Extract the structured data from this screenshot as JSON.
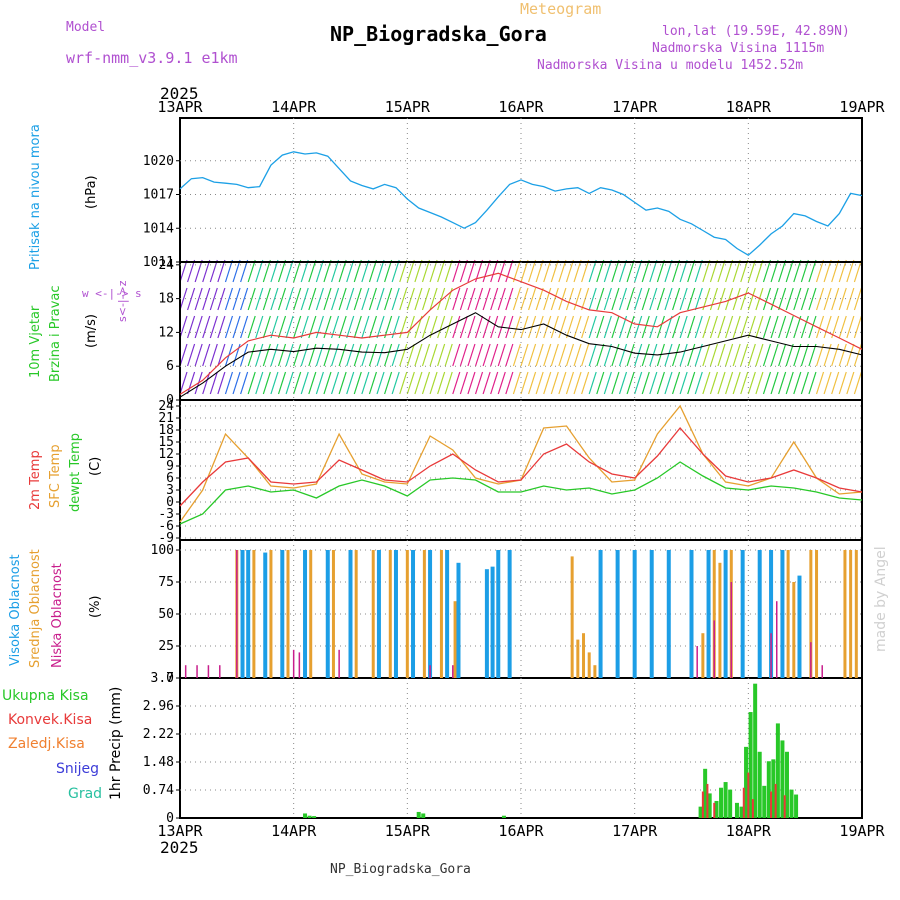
{
  "header": {
    "model_label": "Model",
    "model_value": "wrf-nmm_v3.9.1 e1km",
    "meteogram_label": "Meteogram",
    "title": "NP_Biogradska_Gora",
    "lonlat": "lon,lat (19.59E, 42.89N)",
    "elevation": "Nadmorska Visina 1115m",
    "model_elevation": "Nadmorska Visina u modelu 1452.52m",
    "footer_name": "NP_Biogradska_Gora",
    "watermark": "made by Angel",
    "year": "2025"
  },
  "colors": {
    "pressure": "#1ca0e6",
    "t2m": "#e83a3a",
    "sfc": "#e6a030",
    "dew": "#28c828",
    "cloud_high": "#1c9ee6",
    "cloud_mid": "#e6a030",
    "cloud_low": "#c81e8c",
    "rain_total": "#28c828",
    "rain_conv": "#e83a3a",
    "model": "#b050d0",
    "meteogram": "#f0c070"
  },
  "chart_data": [
    {
      "type": "line",
      "name": "pressure",
      "x_labels": [
        "13APR",
        "14APR",
        "15APR",
        "16APR",
        "17APR",
        "18APR",
        "19APR"
      ],
      "ylabel_colored": "Pritisak na nivou mora",
      "ylabel_unit": "(hPa)",
      "yticks": [
        1011,
        1014,
        1017,
        1020
      ],
      "ylim": [
        1011,
        1023.8
      ],
      "x": [
        0,
        0.1,
        0.2,
        0.3,
        0.4,
        0.5,
        0.6,
        0.7,
        0.8,
        0.9,
        1.0,
        1.1,
        1.2,
        1.3,
        1.4,
        1.5,
        1.6,
        1.7,
        1.8,
        1.9,
        2.0,
        2.1,
        2.2,
        2.3,
        2.4,
        2.5,
        2.6,
        2.7,
        2.8,
        2.9,
        3.0,
        3.1,
        3.2,
        3.3,
        3.4,
        3.5,
        3.6,
        3.7,
        3.8,
        3.9,
        4.0,
        4.1,
        4.2,
        4.3,
        4.4,
        4.5,
        4.6,
        4.7,
        4.8,
        4.9,
        5.0,
        5.1,
        5.2,
        5.3,
        5.4,
        5.5,
        5.6,
        5.7,
        5.8,
        5.9,
        6.0
      ],
      "values": [
        1017.5,
        1018.4,
        1018.5,
        1018.1,
        1018.0,
        1017.9,
        1017.6,
        1017.7,
        1019.6,
        1020.5,
        1020.8,
        1020.6,
        1020.7,
        1020.4,
        1019.3,
        1018.2,
        1017.8,
        1017.5,
        1017.9,
        1017.6,
        1016.6,
        1015.8,
        1015.4,
        1015.0,
        1014.5,
        1014.0,
        1014.5,
        1015.6,
        1016.8,
        1017.9,
        1018.3,
        1017.9,
        1017.7,
        1017.3,
        1017.5,
        1017.6,
        1017.1,
        1017.6,
        1017.4,
        1017.0,
        1016.3,
        1015.6,
        1015.8,
        1015.5,
        1014.8,
        1014.4,
        1013.8,
        1013.2,
        1013.0,
        1012.2,
        1011.6,
        1012.5,
        1013.5,
        1014.2,
        1015.3,
        1015.1,
        1014.6,
        1014.2,
        1015.3,
        1017.1,
        1016.9
      ]
    },
    {
      "type": "line",
      "name": "wind",
      "ylabel_colored1": "10m Vjetar",
      "ylabel_colored2": "Brzina i Pravac",
      "ylabel_unit": "(m/s)",
      "direction_key": "w <-|-> s",
      "direction_key_vertical": "s<-|->z",
      "yticks": [
        0,
        6,
        12,
        18,
        24
      ],
      "ylim": [
        0,
        24.5
      ],
      "x": [
        0,
        0.2,
        0.4,
        0.6,
        0.8,
        1.0,
        1.2,
        1.4,
        1.6,
        1.8,
        2.0,
        2.2,
        2.4,
        2.6,
        2.8,
        3.0,
        3.2,
        3.4,
        3.6,
        3.8,
        4.0,
        4.2,
        4.4,
        4.6,
        4.8,
        5.0,
        5.2,
        5.4,
        5.6,
        5.8,
        6.0
      ],
      "speed": [
        0.5,
        3.0,
        6.0,
        8.5,
        9.0,
        8.6,
        9.2,
        9.0,
        8.5,
        8.4,
        9.0,
        11.5,
        13.5,
        15.5,
        13.0,
        12.5,
        13.5,
        11.5,
        10.0,
        9.5,
        8.3,
        8.0,
        8.5,
        9.5,
        10.5,
        11.5,
        10.5,
        9.5,
        9.5,
        9.0,
        8.0
      ],
      "gust": [
        1.0,
        3.5,
        7.5,
        10.5,
        11.5,
        11.0,
        12.0,
        11.5,
        11.0,
        11.5,
        12.0,
        16.0,
        19.5,
        21.5,
        22.5,
        21.0,
        19.5,
        17.5,
        16.0,
        15.5,
        13.5,
        13.0,
        15.5,
        16.5,
        17.5,
        19.0,
        17.0,
        15.0,
        13.0,
        11.0,
        9.0
      ]
    },
    {
      "type": "line",
      "name": "temperature",
      "ylabel_t2m": "2m Temp",
      "ylabel_sfc": "SFC Temp",
      "ylabel_dew": "dewpt Temp",
      "ylabel_unit": "(C)",
      "yticks": [
        -9,
        -6,
        -3,
        0,
        3,
        6,
        9,
        12,
        15,
        18,
        21,
        24
      ],
      "ylim": [
        -9.5,
        25.5
      ],
      "x": [
        0,
        0.2,
        0.4,
        0.6,
        0.8,
        1.0,
        1.2,
        1.4,
        1.6,
        1.8,
        2.0,
        2.2,
        2.4,
        2.6,
        2.8,
        3.0,
        3.2,
        3.4,
        3.6,
        3.8,
        4.0,
        4.2,
        4.4,
        4.6,
        4.8,
        5.0,
        5.2,
        5.4,
        5.6,
        5.8,
        6.0
      ],
      "t2m": [
        -1.0,
        5.0,
        10.0,
        11.0,
        5.0,
        4.5,
        5.0,
        10.5,
        8.0,
        5.5,
        5.0,
        9.0,
        12.0,
        8.0,
        5.0,
        5.5,
        12.0,
        14.5,
        10.0,
        7.0,
        6.0,
        11.5,
        18.5,
        12.0,
        6.5,
        5.0,
        6.0,
        8.0,
        6.0,
        3.5,
        2.5
      ],
      "sfc": [
        -5.0,
        3.0,
        17.0,
        11.0,
        4.0,
        3.5,
        4.5,
        17.0,
        7.0,
        5.0,
        4.5,
        16.5,
        13.0,
        6.0,
        4.5,
        5.5,
        18.5,
        19.0,
        11.0,
        5.0,
        5.5,
        17.0,
        24.0,
        12.0,
        5.0,
        4.0,
        6.0,
        15.0,
        6.0,
        2.0,
        2.5
      ],
      "dewpt": [
        -5.5,
        -3.0,
        3.0,
        4.0,
        2.5,
        3.0,
        1.0,
        4.0,
        5.5,
        4.0,
        1.5,
        5.5,
        6.0,
        5.5,
        2.5,
        2.5,
        4.0,
        3.0,
        3.5,
        2.0,
        3.0,
        6.0,
        10.0,
        6.5,
        3.5,
        3.0,
        4.0,
        3.5,
        2.5,
        1.0,
        0.5
      ]
    },
    {
      "type": "bar",
      "name": "clouds",
      "ylabel_high": "Visoka Oblacnost",
      "ylabel_mid": "Srednja Oblacnost",
      "ylabel_low": "Niska Oblacnost",
      "ylabel_unit": "(%)",
      "yticks": [
        0,
        25,
        50,
        75,
        100
      ],
      "ylim": [
        0,
        100
      ],
      "high": [
        [
          0.55,
          100
        ],
        [
          0.6,
          100
        ],
        [
          0.75,
          98
        ],
        [
          0.9,
          100
        ],
        [
          1.1,
          100
        ],
        [
          1.3,
          100
        ],
        [
          1.5,
          100
        ],
        [
          1.75,
          100
        ],
        [
          1.9,
          100
        ],
        [
          2.05,
          100
        ],
        [
          2.2,
          100
        ],
        [
          2.35,
          100
        ],
        [
          2.45,
          90
        ],
        [
          2.7,
          85
        ],
        [
          2.75,
          87
        ],
        [
          2.8,
          100
        ],
        [
          2.9,
          100
        ],
        [
          3.7,
          100
        ],
        [
          3.85,
          100
        ],
        [
          4.0,
          100
        ],
        [
          4.15,
          100
        ],
        [
          4.3,
          100
        ],
        [
          4.5,
          100
        ],
        [
          4.65,
          100
        ],
        [
          4.8,
          100
        ],
        [
          4.95,
          100
        ],
        [
          5.1,
          100
        ],
        [
          5.2,
          100
        ],
        [
          5.3,
          100
        ],
        [
          5.45,
          80
        ]
      ],
      "mid": [
        [
          0.5,
          100
        ],
        [
          0.65,
          100
        ],
        [
          0.8,
          100
        ],
        [
          0.95,
          100
        ],
        [
          1.15,
          100
        ],
        [
          1.35,
          100
        ],
        [
          1.55,
          100
        ],
        [
          1.7,
          100
        ],
        [
          1.85,
          100
        ],
        [
          2.0,
          100
        ],
        [
          2.15,
          100
        ],
        [
          2.3,
          100
        ],
        [
          2.42,
          60
        ],
        [
          3.45,
          95
        ],
        [
          3.5,
          30
        ],
        [
          3.55,
          35
        ],
        [
          3.6,
          20
        ],
        [
          3.65,
          10
        ],
        [
          4.6,
          35
        ],
        [
          4.7,
          100
        ],
        [
          4.75,
          90
        ],
        [
          4.85,
          100
        ],
        [
          4.95,
          100
        ],
        [
          5.35,
          100
        ],
        [
          5.4,
          75
        ],
        [
          5.45,
          60
        ],
        [
          5.55,
          100
        ],
        [
          5.6,
          100
        ],
        [
          5.85,
          100
        ],
        [
          5.9,
          100
        ],
        [
          5.95,
          100
        ]
      ],
      "low": [
        [
          0.05,
          10
        ],
        [
          0.15,
          10
        ],
        [
          0.25,
          10
        ],
        [
          0.35,
          10
        ],
        [
          0.5,
          100
        ],
        [
          1.0,
          22
        ],
        [
          1.05,
          20
        ],
        [
          1.4,
          22
        ],
        [
          2.2,
          10
        ],
        [
          2.4,
          10
        ],
        [
          4.55,
          25
        ],
        [
          4.7,
          45
        ],
        [
          4.85,
          75
        ],
        [
          5.2,
          35
        ],
        [
          5.25,
          60
        ],
        [
          5.55,
          28
        ],
        [
          5.65,
          10
        ]
      ]
    },
    {
      "type": "bar",
      "name": "precipitation",
      "ylabel": "1hr Precip (mm)",
      "legend": [
        "Ukupna Kisa",
        "Konvek.Kisa",
        "Zaledj.Kisa",
        "Snijeg",
        "Grad"
      ],
      "yticks": [
        0,
        0.74,
        1.48,
        2.22,
        2.96,
        3.7
      ],
      "ylim": [
        0,
        3.7
      ],
      "total": [
        [
          1.1,
          0.12
        ],
        [
          1.14,
          0.06
        ],
        [
          1.18,
          0.05
        ],
        [
          2.1,
          0.16
        ],
        [
          2.14,
          0.12
        ],
        [
          2.85,
          0.06
        ],
        [
          4.58,
          0.3
        ],
        [
          4.62,
          1.3
        ],
        [
          4.66,
          0.65
        ],
        [
          4.72,
          0.45
        ],
        [
          4.76,
          0.8
        ],
        [
          4.8,
          0.95
        ],
        [
          4.84,
          0.75
        ],
        [
          4.9,
          0.4
        ],
        [
          4.94,
          0.3
        ],
        [
          4.98,
          1.88
        ],
        [
          5.02,
          2.8
        ],
        [
          5.06,
          3.55
        ],
        [
          5.1,
          1.75
        ],
        [
          5.14,
          0.85
        ],
        [
          5.18,
          1.5
        ],
        [
          5.22,
          1.55
        ],
        [
          5.26,
          2.5
        ],
        [
          5.3,
          2.05
        ],
        [
          5.34,
          1.75
        ],
        [
          5.38,
          0.75
        ],
        [
          5.42,
          0.62
        ]
      ],
      "convective": [
        [
          4.6,
          0.7
        ],
        [
          4.64,
          0.9
        ],
        [
          4.7,
          0.4
        ],
        [
          4.96,
          0.8
        ],
        [
          5.0,
          1.2
        ],
        [
          5.04,
          0.5
        ],
        [
          5.2,
          0.7
        ],
        [
          5.24,
          0.9
        ],
        [
          5.32,
          0.6
        ]
      ]
    }
  ]
}
